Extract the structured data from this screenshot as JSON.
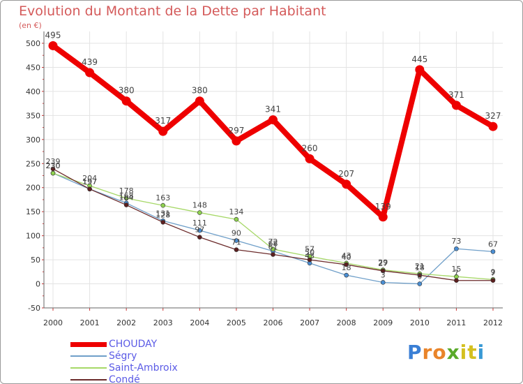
{
  "chart_data": {
    "type": "line",
    "title": "Evolution du Montant de la Dette par Habitant",
    "subtitle": "(en €)",
    "xlabel": "",
    "ylabel": "",
    "ylim": [
      -50,
      500
    ],
    "yticks": [
      -50,
      0,
      50,
      100,
      150,
      200,
      250,
      300,
      350,
      400,
      450,
      500
    ],
    "grid": true,
    "legend_position": "bottom-left",
    "x": [
      "2000",
      "2001",
      "2002",
      "2003",
      "2004",
      "2005",
      "2006",
      "2007",
      "2008",
      "2009",
      "2010",
      "2011",
      "2012"
    ],
    "series": [
      {
        "name": "CHOUDAY",
        "color": "#ee0000",
        "width": "thick",
        "values": [
          495,
          439,
          380,
          317,
          380,
          297,
          341,
          260,
          207,
          139,
          445,
          371,
          327
        ]
      },
      {
        "name": "Ségry",
        "color": "#6f9fc9",
        "marker": "#4a8ed3",
        "values": [
          230,
          197,
          168,
          131,
          111,
          90,
          68,
          43,
          18,
          3,
          0,
          73,
          67
        ]
      },
      {
        "name": "Saint-Ambroix",
        "color": "#a6d867",
        "marker": "#8fd24f",
        "values": [
          230,
          204,
          178,
          163,
          148,
          134,
          72,
          57,
          43,
          29,
          21,
          15,
          9
        ]
      },
      {
        "name": "Condé",
        "color": "#6b2a2a",
        "marker": "#5c1f1f",
        "values": [
          239,
          197,
          164,
          128,
          97,
          71,
          61,
          50,
          40,
          27,
          18,
          7,
          7
        ]
      }
    ]
  },
  "brand": {
    "letters": [
      {
        "ch": "P",
        "color": "#3a7fd5"
      },
      {
        "ch": "r",
        "color": "#e9842a"
      },
      {
        "ch": "o",
        "color": "#e9842a"
      },
      {
        "ch": "x",
        "color": "#5aaa2a"
      },
      {
        "ch": "i",
        "color": "#d4c020"
      },
      {
        "ch": "t",
        "color": "#d4c020"
      },
      {
        "ch": "i",
        "color": "#3a9ad5"
      }
    ]
  }
}
